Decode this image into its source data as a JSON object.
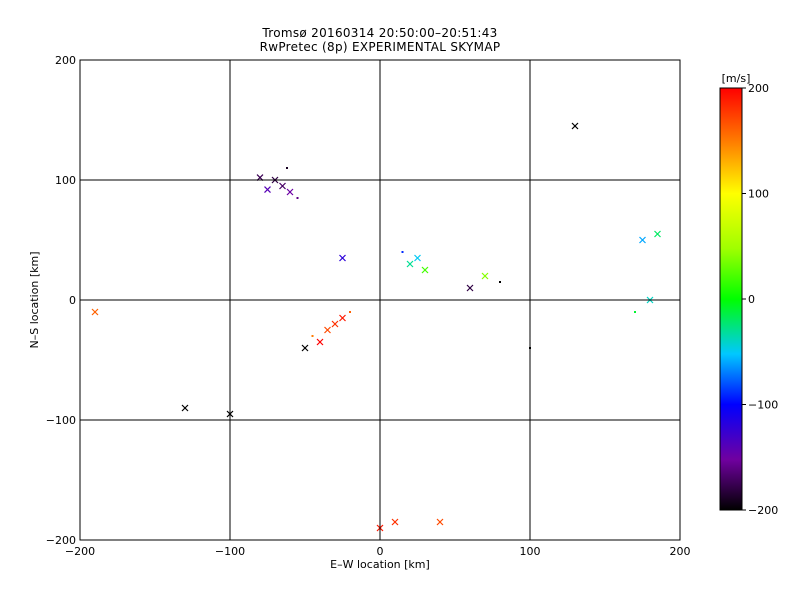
{
  "chart_data": {
    "type": "scatter",
    "title": "Tromsø 20160314 20:50:00–20:51:43",
    "subtitle": "RwPretec (8p) EXPERIMENTAL SKYMAP",
    "xlabel": "E–W location [km]",
    "ylabel": "N–S location [km]",
    "xlim": [
      -200,
      200
    ],
    "ylim": [
      -200,
      200
    ],
    "xticks": [
      -200,
      -100,
      0,
      100,
      200
    ],
    "yticks": [
      -200,
      -100,
      0,
      100,
      200
    ],
    "grid": true,
    "colorbar": {
      "label": "[m/s]",
      "min": -200,
      "max": 200,
      "ticks": [
        -200,
        -100,
        0,
        100,
        200
      ]
    },
    "marker_types": [
      "x",
      "dot"
    ],
    "points": [
      {
        "x": -70,
        "y": 100,
        "v": -180,
        "m": "x"
      },
      {
        "x": -65,
        "y": 95,
        "v": -170,
        "m": "x"
      },
      {
        "x": -60,
        "y": 90,
        "v": -150,
        "m": "x"
      },
      {
        "x": -55,
        "y": 85,
        "v": -160,
        "m": "dot"
      },
      {
        "x": -75,
        "y": 92,
        "v": -140,
        "m": "x"
      },
      {
        "x": -80,
        "y": 102,
        "v": -175,
        "m": "x"
      },
      {
        "x": -62,
        "y": 110,
        "v": -190,
        "m": "dot"
      },
      {
        "x": -30,
        "y": -20,
        "v": 180,
        "m": "x"
      },
      {
        "x": -25,
        "y": -15,
        "v": 190,
        "m": "x"
      },
      {
        "x": -35,
        "y": -25,
        "v": 170,
        "m": "x"
      },
      {
        "x": -20,
        "y": -10,
        "v": 160,
        "m": "dot"
      },
      {
        "x": -40,
        "y": -35,
        "v": 200,
        "m": "x"
      },
      {
        "x": -50,
        "y": -40,
        "v": -200,
        "m": "x"
      },
      {
        "x": -45,
        "y": -30,
        "v": 150,
        "m": "dot"
      },
      {
        "x": 0,
        "y": -190,
        "v": 190,
        "m": "x"
      },
      {
        "x": 10,
        "y": -185,
        "v": 180,
        "m": "x"
      },
      {
        "x": 40,
        "y": -185,
        "v": 170,
        "m": "x"
      },
      {
        "x": 20,
        "y": 30,
        "v": -30,
        "m": "x"
      },
      {
        "x": 25,
        "y": 35,
        "v": -50,
        "m": "x"
      },
      {
        "x": 15,
        "y": 40,
        "v": -90,
        "m": "dot"
      },
      {
        "x": -25,
        "y": 35,
        "v": -120,
        "m": "x"
      },
      {
        "x": 30,
        "y": 25,
        "v": 20,
        "m": "x"
      },
      {
        "x": 70,
        "y": 20,
        "v": 40,
        "m": "x"
      },
      {
        "x": 80,
        "y": 15,
        "v": -200,
        "m": "dot"
      },
      {
        "x": 175,
        "y": 50,
        "v": -60,
        "m": "x"
      },
      {
        "x": 185,
        "y": 55,
        "v": -20,
        "m": "x"
      },
      {
        "x": 180,
        "y": 0,
        "v": -40,
        "m": "x"
      },
      {
        "x": 170,
        "y": -10,
        "v": -10,
        "m": "dot"
      },
      {
        "x": -130,
        "y": -90,
        "v": -200,
        "m": "x"
      },
      {
        "x": -100,
        "y": -95,
        "v": -200,
        "m": "x"
      },
      {
        "x": 130,
        "y": 145,
        "v": -200,
        "m": "x"
      },
      {
        "x": 100,
        "y": -40,
        "v": -200,
        "m": "dot"
      },
      {
        "x": -190,
        "y": -10,
        "v": 160,
        "m": "x"
      },
      {
        "x": 60,
        "y": 10,
        "v": -180,
        "m": "x"
      }
    ]
  }
}
